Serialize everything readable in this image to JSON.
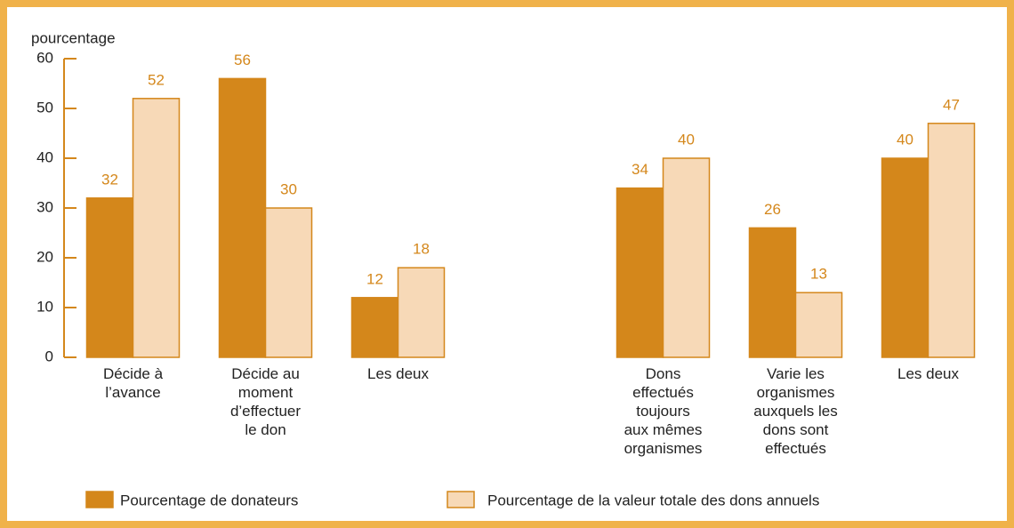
{
  "chart_data": {
    "type": "bar",
    "y_label": "pourcentage",
    "categories": [
      "Décide à\nl’avance",
      "Décide au\nmoment\nd’effectuer\nle don",
      "Les deux",
      null,
      "Dons\neffectués\ntoujours\naux mêmes\norganismes",
      "Varie les\norganismes\nauxquels les\ndons sont\neffectués",
      "Les deux"
    ],
    "series": [
      {
        "name": "Pourcentage de donateurs",
        "color": "#d4871b",
        "values": [
          32,
          56,
          12,
          null,
          34,
          26,
          40
        ]
      },
      {
        "name": "Pourcentage de la valeur totale des dons annuels",
        "color": "#f7d9b7",
        "values": [
          52,
          30,
          18,
          null,
          40,
          13,
          47
        ]
      }
    ],
    "ylim": [
      0,
      60
    ],
    "yticks": [
      0,
      10,
      20,
      30,
      40,
      50,
      60
    ]
  }
}
